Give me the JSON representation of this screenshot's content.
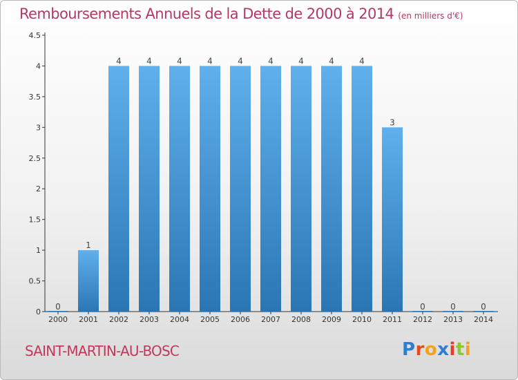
{
  "title": {
    "main": "Remboursements Annuels de la Dette de 2000 à 2014",
    "unit": "(en milliers d'€)"
  },
  "commune": "SAINT-MARTIN-AU-BOSC",
  "logo": {
    "text": "Proxiti",
    "letter_colors": [
      "#2f7fd0",
      "#e8491d",
      "#f3a21f",
      "#2f7fd0",
      "#e83a2a",
      "#8fc53a",
      "#f3a21f"
    ]
  },
  "colors": {
    "bar_light": "#5fb0ec",
    "bar_dark": "#2a76b4",
    "title": "#b23a62",
    "axis": "#333333"
  },
  "chart_data": {
    "type": "bar",
    "title": "Remboursements Annuels de la Dette de 2000 à 2014",
    "ylabel": "(en milliers d'€)",
    "categories": [
      "2000",
      "2001",
      "2002",
      "2003",
      "2004",
      "2005",
      "2006",
      "2007",
      "2008",
      "2009",
      "2010",
      "2011",
      "2012",
      "2013",
      "2014"
    ],
    "values": [
      0,
      1,
      4,
      4,
      4,
      4,
      4,
      4,
      4,
      4,
      4,
      3,
      0,
      0,
      0
    ],
    "data_labels": [
      "0",
      "1",
      "4",
      "4",
      "4",
      "4",
      "4",
      "4",
      "4",
      "4",
      "4",
      "3",
      "0",
      "0",
      "0"
    ],
    "yticks": [
      "0",
      "0.5",
      "1",
      "1.5",
      "2",
      "2.5",
      "3",
      "3.5",
      "4",
      "4.5"
    ],
    "ylim": [
      0,
      4.5
    ],
    "grid": false,
    "legend": "none"
  }
}
